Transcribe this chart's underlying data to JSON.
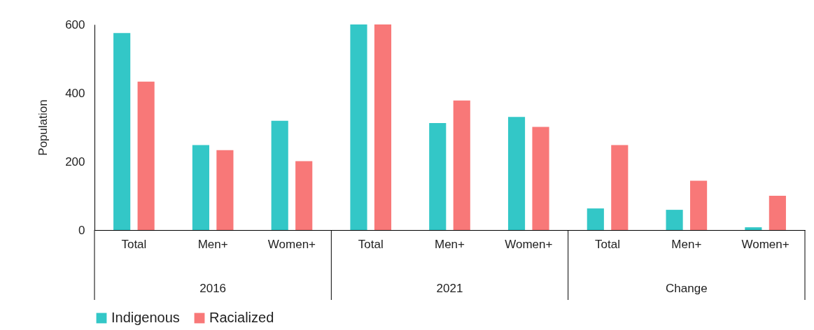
{
  "chart_data": {
    "type": "bar",
    "ylabel": "Population",
    "categories": [
      "Total",
      "Men+",
      "Women+",
      "Total",
      "Men+",
      "Women+",
      "Total",
      "Men+",
      "Women+"
    ],
    "annotations": [
      "2016",
      "2021",
      "Change"
    ],
    "series": [
      {
        "name": "Indigenous",
        "color": "#33c7c7",
        "values": [
          575,
          248,
          319,
          600,
          312,
          330,
          63,
          59,
          8
        ]
      },
      {
        "name": "Racialized",
        "color": "#f87878",
        "values": [
          433,
          233,
          201,
          600,
          378,
          301,
          248,
          144,
          100
        ]
      }
    ],
    "ylim": [
      0,
      600
    ],
    "yticks": [
      0,
      200,
      400,
      600
    ],
    "grid": false,
    "legend": "bottom"
  }
}
